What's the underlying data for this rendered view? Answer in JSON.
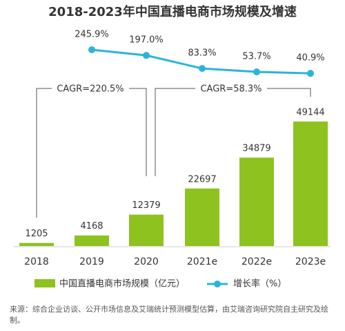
{
  "chart_data": {
    "type": "bar-line",
    "title": "2018-2023年中国直播电商市场规模及增速",
    "categories": [
      "2018",
      "2019",
      "2020",
      "2021e",
      "2022e",
      "2023e"
    ],
    "series": [
      {
        "name": "中国直播电商市场规模（亿元）",
        "color": "#8dc21f",
        "type": "bar",
        "values": [
          1205,
          4168,
          12379,
          22697,
          34879,
          49144
        ]
      },
      {
        "name": "增长率（%）",
        "color": "#2bb4d9",
        "type": "line",
        "axis": "y2",
        "values": [
          null,
          245.9,
          197.0,
          83.3,
          53.7,
          40.9
        ],
        "value_labels": [
          null,
          "245.9%",
          "197.0%",
          "83.3%",
          "53.7%",
          "40.9%"
        ]
      }
    ],
    "ylim": [
      0,
      60000
    ],
    "y2lim": [
      0,
      300
    ],
    "annotations": [
      "CAGR=220.5%",
      "CAGR=58.3%"
    ],
    "source": "来源：综合企业访谈、公开市场信息及艾瑞统计预测模型估算，由艾瑞咨询研究院自主研究及绘制。"
  }
}
